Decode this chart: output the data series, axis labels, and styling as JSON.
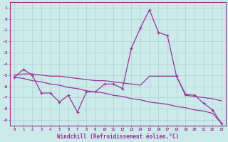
{
  "x_hours": [
    0,
    1,
    2,
    3,
    4,
    5,
    6,
    7,
    8,
    9,
    10,
    11,
    12,
    13,
    14,
    15,
    16,
    17,
    18,
    19,
    20,
    21,
    22,
    23
  ],
  "windchill": [
    -5.2,
    -4.5,
    -5.0,
    -6.6,
    -6.6,
    -7.4,
    -6.8,
    -8.3,
    -6.5,
    -6.5,
    -5.8,
    -5.8,
    -6.2,
    -2.6,
    -0.8,
    0.8,
    -1.2,
    -1.5,
    -5.1,
    -6.7,
    -6.8,
    -7.5,
    -8.1,
    -9.3
  ],
  "avg_line": [
    -5.0,
    -4.9,
    -4.9,
    -5.0,
    -5.1,
    -5.1,
    -5.2,
    -5.3,
    -5.4,
    -5.5,
    -5.5,
    -5.6,
    -5.7,
    -5.8,
    -5.9,
    -5.1,
    -5.1,
    -5.1,
    -5.1,
    -6.8,
    -6.9,
    -7.0,
    -7.1,
    -7.3
  ],
  "ref_line": [
    -5.2,
    -5.3,
    -5.5,
    -5.6,
    -5.8,
    -5.9,
    -6.1,
    -6.2,
    -6.4,
    -6.5,
    -6.6,
    -6.8,
    -6.9,
    -7.1,
    -7.2,
    -7.4,
    -7.5,
    -7.6,
    -7.8,
    -7.9,
    -8.1,
    -8.2,
    -8.4,
    -9.3
  ],
  "bg_color": "#cceaea",
  "grid_color": "#aad4d4",
  "line_color": "#993399",
  "xlabel": "Windchill (Refroidissement éolien,°C)",
  "ylim_min": -9.5,
  "ylim_max": 1.5,
  "yticks": [
    1,
    0,
    -1,
    -2,
    -3,
    -4,
    -5,
    -6,
    -7,
    -8,
    -9
  ],
  "xlim_min": -0.5,
  "xlim_max": 23.5
}
